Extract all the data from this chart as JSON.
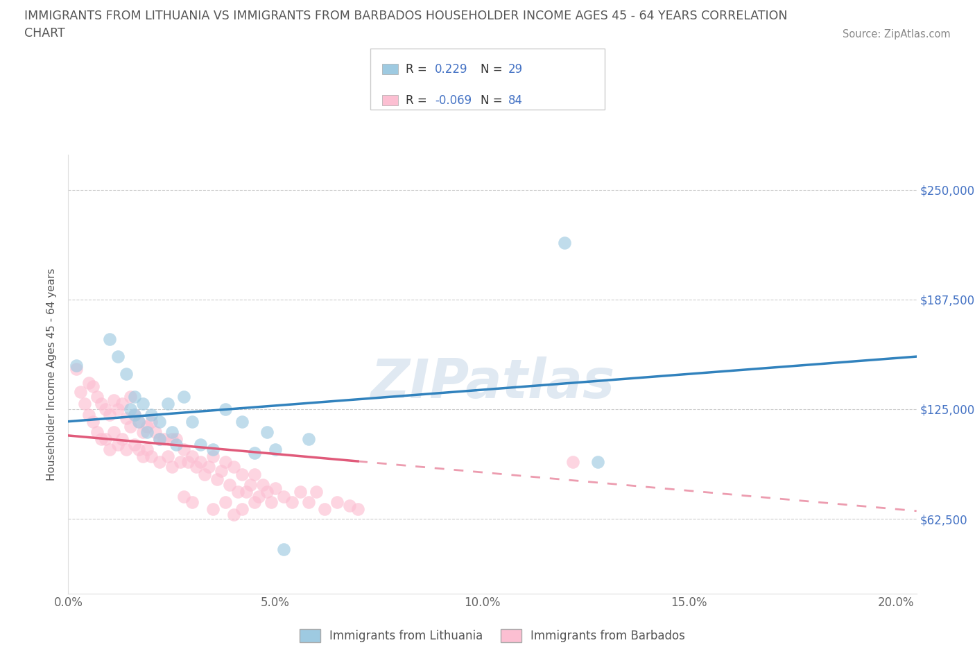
{
  "title_line1": "IMMIGRANTS FROM LITHUANIA VS IMMIGRANTS FROM BARBADOS HOUSEHOLDER INCOME AGES 45 - 64 YEARS CORRELATION",
  "title_line2": "CHART",
  "source_text": "Source: ZipAtlas.com",
  "ylabel": "Householder Income Ages 45 - 64 years",
  "r_lithuania": 0.229,
  "n_lithuania": 29,
  "r_barbados": -0.069,
  "n_barbados": 84,
  "xlim": [
    0.0,
    0.205
  ],
  "ylim": [
    20000,
    270000
  ],
  "xticks": [
    0.0,
    0.05,
    0.1,
    0.15,
    0.2
  ],
  "xticklabels": [
    "0.0%",
    "5.0%",
    "10.0%",
    "15.0%",
    "20.0%"
  ],
  "yticks": [
    62500,
    125000,
    187500,
    250000
  ],
  "yticklabels": [
    "$62,500",
    "$125,000",
    "$187,500",
    "$250,000"
  ],
  "color_lithuania": "#9ecae1",
  "color_barbados": "#fcbfd2",
  "line_color_lithuania": "#3182bd",
  "line_color_barbados": "#e05a7a",
  "watermark": "ZIPatlas",
  "legend_labels": [
    "Immigrants from Lithuania",
    "Immigrants from Barbados"
  ],
  "lithuania_x": [
    0.002,
    0.01,
    0.012,
    0.014,
    0.015,
    0.016,
    0.016,
    0.017,
    0.018,
    0.019,
    0.02,
    0.022,
    0.022,
    0.024,
    0.025,
    0.026,
    0.028,
    0.03,
    0.032,
    0.035,
    0.038,
    0.042,
    0.048,
    0.052,
    0.058,
    0.12,
    0.128,
    0.045,
    0.05
  ],
  "lithuania_y": [
    150000,
    165000,
    155000,
    145000,
    125000,
    132000,
    122000,
    118000,
    128000,
    112000,
    122000,
    118000,
    108000,
    128000,
    112000,
    105000,
    132000,
    118000,
    105000,
    102000,
    125000,
    118000,
    112000,
    45000,
    108000,
    220000,
    95000,
    100000,
    102000
  ],
  "barbados_x": [
    0.002,
    0.003,
    0.004,
    0.005,
    0.005,
    0.006,
    0.006,
    0.007,
    0.007,
    0.008,
    0.008,
    0.009,
    0.009,
    0.01,
    0.01,
    0.011,
    0.011,
    0.012,
    0.012,
    0.013,
    0.013,
    0.014,
    0.014,
    0.015,
    0.015,
    0.016,
    0.016,
    0.017,
    0.017,
    0.018,
    0.018,
    0.019,
    0.019,
    0.02,
    0.02,
    0.021,
    0.022,
    0.022,
    0.023,
    0.024,
    0.025,
    0.025,
    0.026,
    0.027,
    0.028,
    0.029,
    0.03,
    0.031,
    0.032,
    0.033,
    0.034,
    0.035,
    0.036,
    0.037,
    0.038,
    0.039,
    0.04,
    0.041,
    0.042,
    0.043,
    0.044,
    0.045,
    0.046,
    0.047,
    0.048,
    0.049,
    0.05,
    0.052,
    0.054,
    0.056,
    0.058,
    0.06,
    0.062,
    0.065,
    0.068,
    0.07,
    0.028,
    0.03,
    0.035,
    0.038,
    0.122,
    0.04,
    0.042,
    0.045
  ],
  "barbados_y": [
    148000,
    135000,
    128000,
    140000,
    122000,
    138000,
    118000,
    132000,
    112000,
    128000,
    108000,
    125000,
    108000,
    122000,
    102000,
    130000,
    112000,
    125000,
    105000,
    128000,
    108000,
    120000,
    102000,
    132000,
    115000,
    122000,
    105000,
    118000,
    102000,
    112000,
    98000,
    115000,
    102000,
    118000,
    98000,
    112000,
    108000,
    95000,
    108000,
    98000,
    108000,
    92000,
    108000,
    95000,
    102000,
    95000,
    98000,
    92000,
    95000,
    88000,
    92000,
    98000,
    85000,
    90000,
    95000,
    82000,
    92000,
    78000,
    88000,
    78000,
    82000,
    88000,
    75000,
    82000,
    78000,
    72000,
    80000,
    75000,
    72000,
    78000,
    72000,
    78000,
    68000,
    72000,
    70000,
    68000,
    75000,
    72000,
    68000,
    72000,
    95000,
    65000,
    68000,
    72000
  ]
}
